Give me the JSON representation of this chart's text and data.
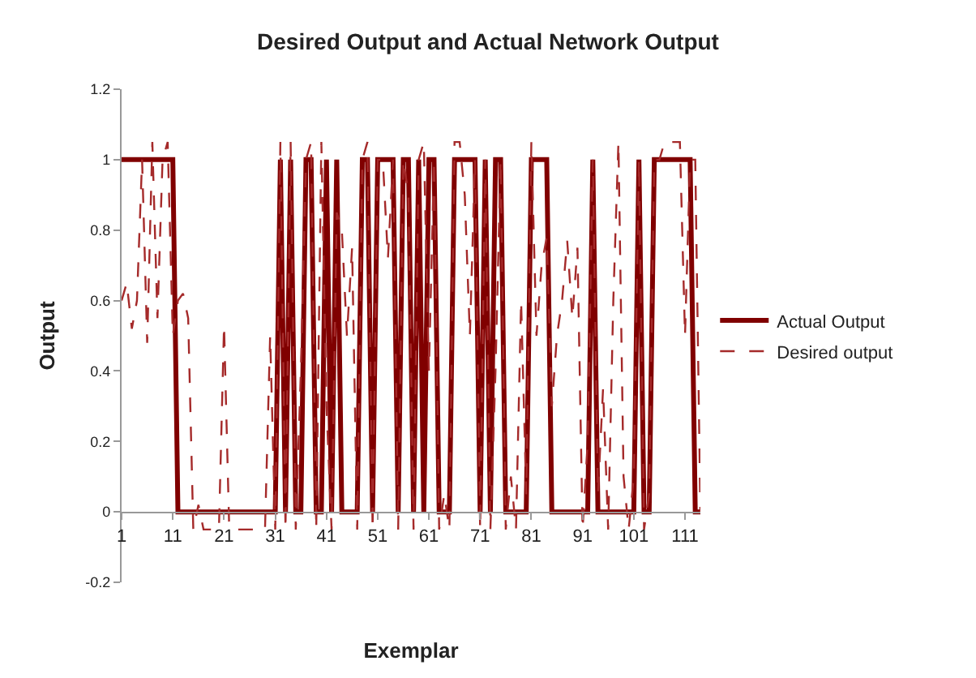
{
  "chart_data": {
    "type": "line",
    "title": "Desired Output and Actual Network Output",
    "xlabel": "Exemplar",
    "ylabel": "Output",
    "x": [
      1,
      2,
      3,
      4,
      5,
      6,
      7,
      8,
      9,
      10,
      11,
      12,
      13,
      14,
      15,
      16,
      17,
      18,
      19,
      20,
      21,
      22,
      23,
      24,
      25,
      26,
      27,
      28,
      29,
      30,
      31,
      32,
      33,
      34,
      35,
      36,
      37,
      38,
      39,
      40,
      41,
      42,
      43,
      44,
      45,
      46,
      47,
      48,
      49,
      50,
      51,
      52,
      53,
      54,
      55,
      56,
      57,
      58,
      59,
      60,
      61,
      62,
      63,
      64,
      65,
      66,
      67,
      68,
      69,
      70,
      71,
      72,
      73,
      74,
      75,
      76,
      77,
      78,
      79,
      80,
      81,
      82,
      83,
      84,
      85,
      86,
      87,
      88,
      89,
      90,
      91,
      92,
      93,
      94,
      95,
      96,
      97,
      98,
      99,
      100,
      101,
      102,
      103,
      104,
      105,
      106,
      107,
      108,
      109,
      110,
      111,
      112,
      113,
      114
    ],
    "series": [
      {
        "name": "Actual Output",
        "color": "#800000",
        "line_style": "solid",
        "values": [
          1,
          1,
          1,
          1,
          1,
          1,
          1,
          1,
          1,
          1,
          1,
          0,
          0,
          0,
          0,
          0,
          0,
          0,
          0,
          0,
          0,
          0,
          0,
          0,
          0,
          0,
          0,
          0,
          0,
          0,
          0,
          1,
          0,
          1,
          0,
          0,
          1,
          1,
          0,
          0,
          1,
          0,
          1,
          0,
          0,
          0,
          0,
          1,
          1,
          0,
          1,
          1,
          1,
          1,
          0,
          1,
          1,
          0,
          1,
          0,
          1,
          1,
          0,
          0,
          0,
          1,
          1,
          1,
          1,
          1,
          0,
          1,
          0,
          1,
          1,
          0,
          0,
          0,
          0,
          0,
          1,
          1,
          1,
          1,
          0,
          0,
          0,
          0,
          0,
          0,
          0,
          0,
          1,
          0,
          0,
          0,
          0,
          0,
          0,
          0,
          0,
          1,
          0,
          0,
          1,
          1,
          1,
          1,
          1,
          1,
          1,
          1,
          0,
          0
        ]
      },
      {
        "name": "Desired output",
        "color": "#a52a2a",
        "line_style": "dashed",
        "values": [
          0.6,
          0.65,
          0.52,
          0.6,
          1.0,
          0.48,
          1.05,
          0.55,
          1.0,
          1.05,
          0.5,
          0.6,
          0.62,
          0.55,
          -0.05,
          0.02,
          -0.05,
          -0.05,
          -0.05,
          -0.05,
          0.53,
          -0.04,
          -0.05,
          -0.05,
          -0.05,
          -0.05,
          -0.05,
          -0.05,
          -0.05,
          0.5,
          -0.05,
          1.05,
          -0.05,
          1.05,
          -0.05,
          0.4,
          1.0,
          1.05,
          -0.05,
          1.05,
          0.3,
          -0.05,
          0.85,
          0.8,
          0.5,
          0.75,
          -0.05,
          1.0,
          1.05,
          -0.05,
          1.0,
          1.0,
          0.72,
          1.0,
          -0.05,
          1.0,
          0.9,
          -0.05,
          1.0,
          1.05,
          0.4,
          1.0,
          -0.05,
          0.05,
          -0.05,
          1.05,
          1.05,
          0.9,
          0.5,
          1.0,
          -0.05,
          1.0,
          -0.05,
          0.4,
          1.0,
          -0.05,
          0.1,
          -0.05,
          0.6,
          0.05,
          1.05,
          0.5,
          0.7,
          0.78,
          0.3,
          0.5,
          0.6,
          0.77,
          0.55,
          0.75,
          -0.05,
          0.2,
          1.0,
          0.05,
          0.35,
          -0.05,
          0.6,
          1.05,
          0.1,
          -0.05,
          0.1,
          1.0,
          -0.05,
          0.05,
          1.0,
          1.0,
          1.05,
          1.05,
          1.05,
          1.05,
          0.5,
          1.0,
          1.0,
          0.0
        ]
      }
    ],
    "xlim": [
      1,
      114
    ],
    "xticks": [
      1,
      11,
      21,
      31,
      41,
      51,
      61,
      71,
      81,
      91,
      101,
      111
    ],
    "ylim": [
      -0.2,
      1.2
    ],
    "yticks": [
      -0.2,
      0,
      0.2,
      0.4,
      0.6,
      0.8,
      1,
      1.2
    ],
    "legend": "right",
    "marker": "none"
  }
}
